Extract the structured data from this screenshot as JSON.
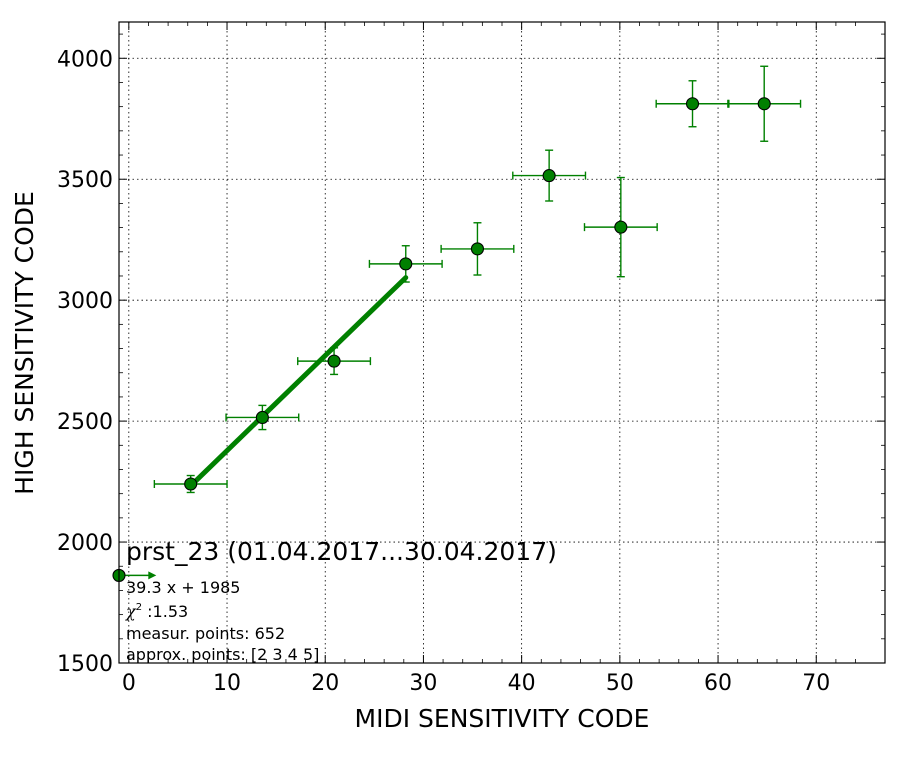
{
  "chart_data": {
    "type": "scatter",
    "xlabel": "MIDI SENSITIVITY CODE",
    "ylabel": "HIGH SENSITIVITY CODE",
    "xlim": [
      -1,
      77
    ],
    "ylim": [
      1500,
      4150
    ],
    "x_ticks": [
      0,
      10,
      20,
      30,
      40,
      50,
      60,
      70
    ],
    "y_ticks": [
      1500,
      2000,
      2500,
      3000,
      3500,
      4000
    ],
    "grid": true,
    "color": "#008000",
    "points": [
      {
        "x": 6.3,
        "y": 2240,
        "xerr": 3.7,
        "yerr": 35
      },
      {
        "x": 13.6,
        "y": 2515,
        "xerr": 3.7,
        "yerr": 50
      },
      {
        "x": 20.9,
        "y": 2748,
        "xerr": 3.7,
        "yerr": 55
      },
      {
        "x": 28.2,
        "y": 3150,
        "xerr": 3.7,
        "yerr": 75
      },
      {
        "x": 35.5,
        "y": 3212,
        "xerr": 3.7,
        "yerr": 108
      },
      {
        "x": 42.8,
        "y": 3515,
        "xerr": 3.7,
        "yerr": 105
      },
      {
        "x": 50.1,
        "y": 3302,
        "xerr": 3.7,
        "yerr": 205
      },
      {
        "x": 57.4,
        "y": 3812,
        "xerr": 3.7,
        "yerr": 95
      },
      {
        "x": 64.7,
        "y": 3812,
        "xerr": 3.7,
        "yerr": 155
      }
    ],
    "fit": {
      "slope": 39.3,
      "intercept": 1985,
      "x_start": 6.3,
      "x_end": 28.2
    },
    "edge_marker": {
      "x": -1,
      "y": 1862,
      "arrow_to_x": 2.8
    },
    "annotations": {
      "title": "prst_23 (01.04.2017...30.04.2017)",
      "equation": "39.3 x + 1985",
      "chi2_symbol": "χ",
      "chi2_sup": "2",
      "chi2_value": " :1.53",
      "measur_points": "measur. points: 652",
      "approx_points": "approx. points: [2 3 4 5]"
    }
  }
}
